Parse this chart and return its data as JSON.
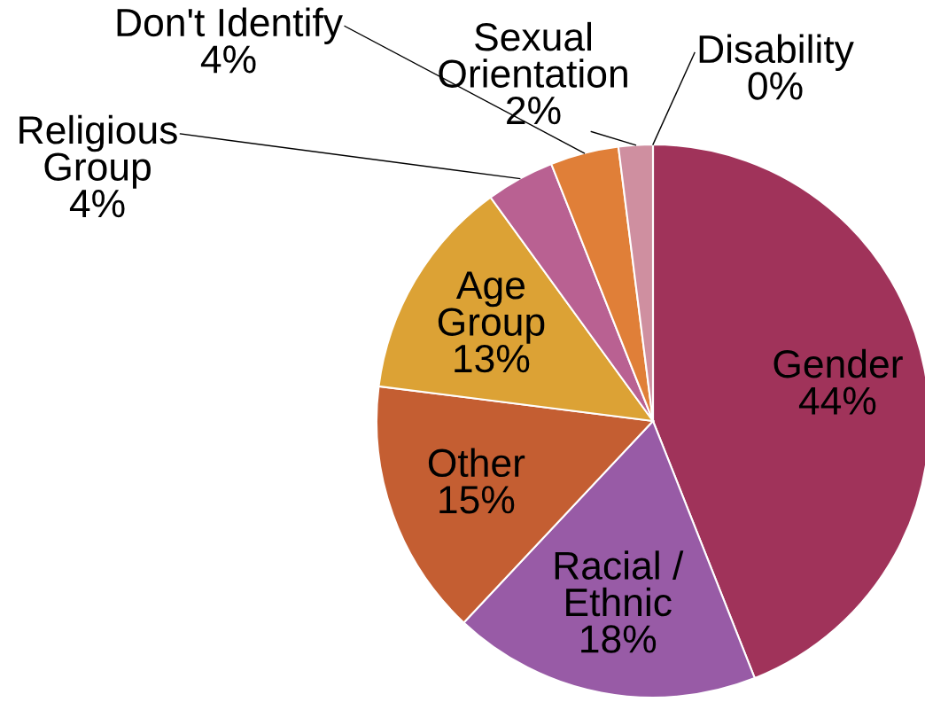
{
  "chart_data": {
    "type": "pie",
    "categories": [
      "Gender",
      "Racial /\nEthnic",
      "Other",
      "Age\nGroup",
      "Religious\nGroup",
      "Don't Identify",
      "Sexual\nOrientation",
      "Disability"
    ],
    "values": [
      44,
      18,
      15,
      13,
      4,
      4,
      2,
      0
    ],
    "value_labels": [
      "44%",
      "18%",
      "15%",
      "13%",
      "4%",
      "4%",
      "2%",
      "0%"
    ],
    "colors": [
      "#a0335a",
      "#985ba6",
      "#c45e32",
      "#dca235",
      "#b96192",
      "#e07f38",
      "#cf8fa0",
      "#c05070"
    ],
    "legend": false
  }
}
